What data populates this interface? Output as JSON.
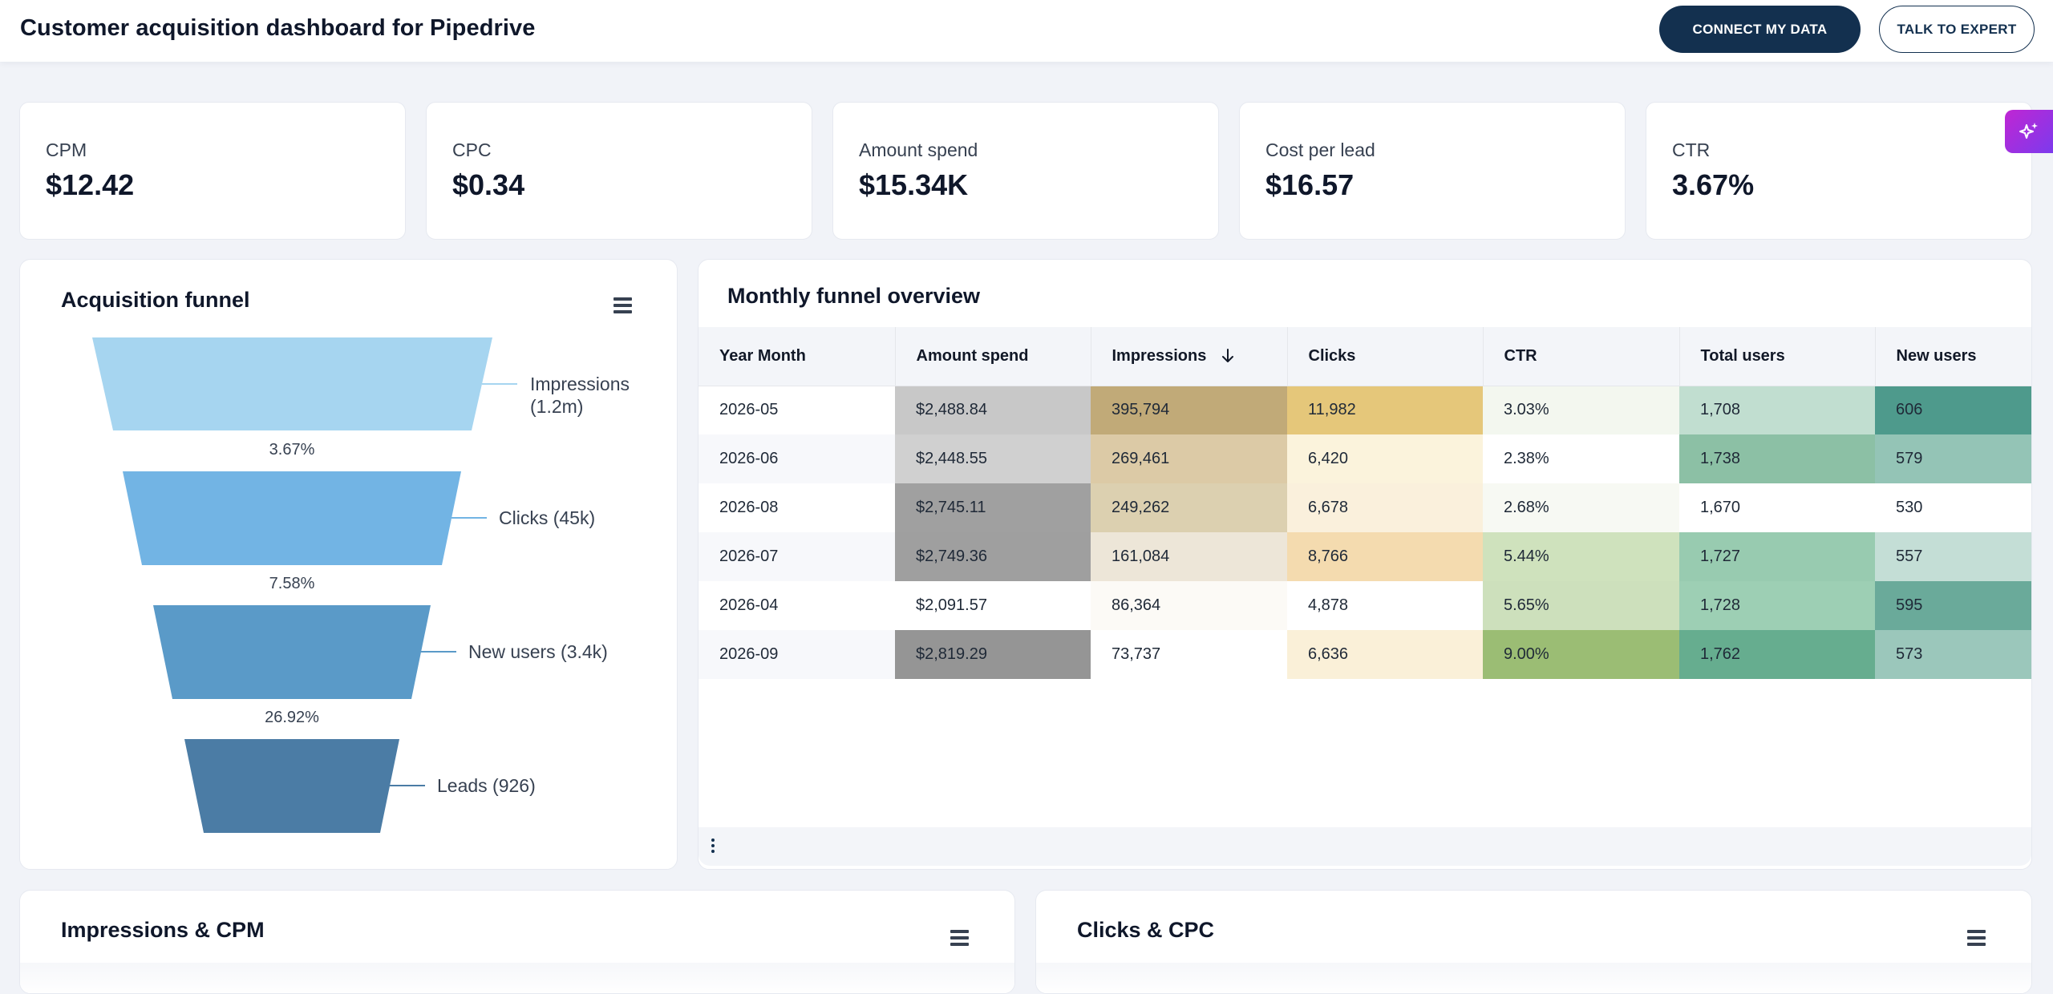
{
  "header": {
    "title": "Customer acquisition dashboard for Pipedrive",
    "connect_label": "CONNECT MY DATA",
    "expert_label": "TALK TO EXPERT"
  },
  "kpis": [
    {
      "label": "CPM",
      "value": "$12.42"
    },
    {
      "label": "CPC",
      "value": "$0.34"
    },
    {
      "label": "Amount spend",
      "value": "$15.34K"
    },
    {
      "label": "Cost per lead",
      "value": "$16.57"
    },
    {
      "label": "CTR",
      "value": "3.67%"
    }
  ],
  "funnel": {
    "title": "Acquisition funnel",
    "stages": [
      {
        "line1": "Impressions",
        "line2": "(1.2m)",
        "color": "#a6d5f0"
      },
      {
        "line1": "Clicks (45k)",
        "line2": "",
        "color": "#72b4e4"
      },
      {
        "line1": "New users (3.4k)",
        "line2": "",
        "color": "#5a9ac8"
      },
      {
        "line1": "Leads (926)",
        "line2": "",
        "color": "#4b7ca5"
      }
    ],
    "rates": [
      "3.67%",
      "7.58%",
      "26.92%"
    ]
  },
  "table": {
    "title": "Monthly funnel overview",
    "columns": [
      "Year Month",
      "Amount spend",
      "Impressions",
      "Clicks",
      "CTR",
      "Total users",
      "New users"
    ],
    "rows": [
      [
        "2026-05",
        "$2,488.84",
        "395,794",
        "11,982",
        "3.03%",
        "1,708",
        "606"
      ],
      [
        "2026-06",
        "$2,448.55",
        "269,461",
        "6,420",
        "2.38%",
        "1,738",
        "579"
      ],
      [
        "2026-08",
        "$2,745.11",
        "249,262",
        "6,678",
        "2.68%",
        "1,670",
        "530"
      ],
      [
        "2026-07",
        "$2,749.36",
        "161,084",
        "8,766",
        "5.44%",
        "1,727",
        "557"
      ],
      [
        "2026-04",
        "$2,091.57",
        "86,364",
        "4,878",
        "5.65%",
        "1,728",
        "595"
      ],
      [
        "2026-09",
        "$2,819.29",
        "73,737",
        "6,636",
        "9.00%",
        "1,762",
        "573"
      ]
    ],
    "cell_colors": [
      [
        "",
        "#c8c8c8",
        "#c1aa78",
        "#e5c77a",
        "#f3f7ef",
        "#c1ded0",
        "#4e9a8c"
      ],
      [
        "",
        "#d0d0d0",
        "#dccaa6",
        "#fbf3dc",
        "#ffffff",
        "#8cc0a5",
        "#94c4b6"
      ],
      [
        "",
        "#a0a0a0",
        "#dcd0b0",
        "#faf0dc",
        "#f7f9f3",
        "#ffffff",
        "#ffffff"
      ],
      [
        "",
        "#9f9f9f",
        "#ede6d8",
        "#f4dbaf",
        "#cfe2bd",
        "#98cbb0",
        "#c4ded6"
      ],
      [
        "",
        "#ffffff",
        "#fcfaf6",
        "#ffffff",
        "#cde0bc",
        "#9dcfb4",
        "#6aaa9a"
      ],
      [
        "",
        "#959595",
        "#ffffff",
        "#faf0d8",
        "#9bbd74",
        "#66ad8f",
        "#9bc7bb"
      ]
    ]
  },
  "bottom": {
    "left_title": "Impressions & CPM",
    "right_title": "Clicks & CPC"
  }
}
